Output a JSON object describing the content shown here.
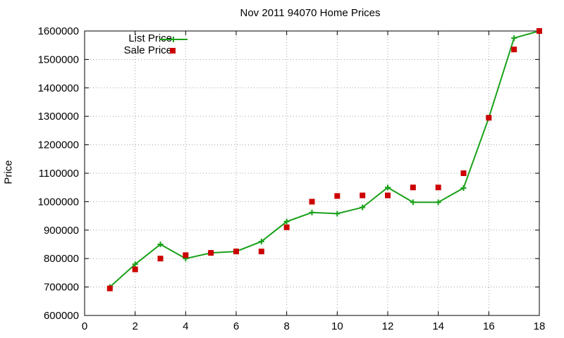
{
  "chart_data": {
    "type": "line",
    "title": "Nov 2011 94070 Home Prices",
    "xlabel": "",
    "ylabel": "Price",
    "xlim": [
      0,
      18
    ],
    "ylim": [
      600000,
      1600000
    ],
    "xticks": [
      0,
      2,
      4,
      6,
      8,
      10,
      12,
      14,
      16,
      18
    ],
    "yticks": [
      600000,
      700000,
      800000,
      900000,
      1000000,
      1100000,
      1200000,
      1300000,
      1400000,
      1500000,
      1600000
    ],
    "grid": true,
    "legend_position": "top-left",
    "x": [
      1,
      2,
      3,
      4,
      5,
      6,
      7,
      8,
      9,
      10,
      11,
      12,
      13,
      14,
      15,
      16,
      17,
      18
    ],
    "series": [
      {
        "name": "List Price",
        "style": "line-with-plus-markers",
        "color": "#1aa11a",
        "values": [
          700000,
          780000,
          850000,
          800000,
          820000,
          825000,
          860000,
          930000,
          962000,
          958000,
          980000,
          1050000,
          998000,
          998000,
          1048000,
          1295000,
          1575000,
          1600000
        ]
      },
      {
        "name": "Sale Price",
        "style": "square-markers",
        "color": "#cc0000",
        "values": [
          695000,
          762000,
          800000,
          812000,
          820000,
          825000,
          825000,
          910000,
          1000000,
          1020000,
          1022000,
          1022000,
          1050000,
          1050000,
          1100000,
          1295000,
          1535000,
          1600000
        ]
      }
    ]
  }
}
